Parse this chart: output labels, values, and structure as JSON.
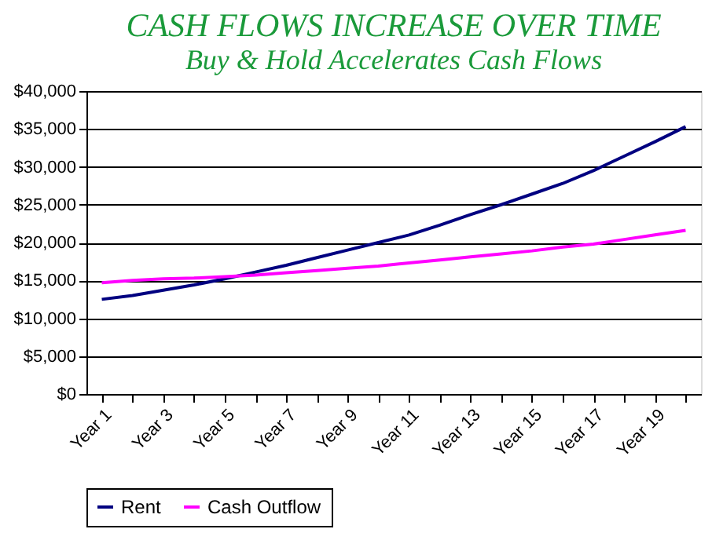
{
  "chart_data": {
    "type": "line",
    "title": "CASH FLOWS INCREASE OVER TIME",
    "subtitle": "Buy & Hold Accelerates Cash Flows",
    "categories": [
      "Year 1",
      null,
      "Year 3",
      null,
      "Year 5",
      null,
      "Year 7",
      null,
      "Year 9",
      null,
      "Year 11",
      null,
      "Year 13",
      null,
      "Year 15",
      null,
      "Year 17",
      null,
      "Year 19",
      null
    ],
    "series": [
      {
        "name": "Rent",
        "color": "#000080",
        "values": [
          12500,
          13000,
          13700,
          14400,
          15200,
          16100,
          17000,
          18000,
          19000,
          20000,
          21000,
          22300,
          23700,
          25000,
          26400,
          27800,
          29500,
          31400,
          33300,
          35300
        ]
      },
      {
        "name": "Cash Outflow",
        "color": "#ff00ff",
        "values": [
          14700,
          15000,
          15200,
          15300,
          15500,
          15700,
          16000,
          16300,
          16600,
          16900,
          17300,
          17700,
          18100,
          18500,
          18900,
          19400,
          19800,
          20400,
          21000,
          21600
        ]
      }
    ],
    "ylim": [
      0,
      40000
    ],
    "yticks": [
      {
        "value": 0,
        "label": "$0"
      },
      {
        "value": 5000,
        "label": "$5,000"
      },
      {
        "value": 10000,
        "label": "$10,000"
      },
      {
        "value": 15000,
        "label": "$15,000"
      },
      {
        "value": 20000,
        "label": "$20,000"
      },
      {
        "value": 25000,
        "label": "$25,000"
      },
      {
        "value": 30000,
        "label": "$30,000"
      },
      {
        "value": 35000,
        "label": "$35,000"
      },
      {
        "value": 40000,
        "label": "$40,000"
      }
    ],
    "grid": "y",
    "legend": "bottom",
    "marker": "none",
    "line_style": "solid"
  }
}
